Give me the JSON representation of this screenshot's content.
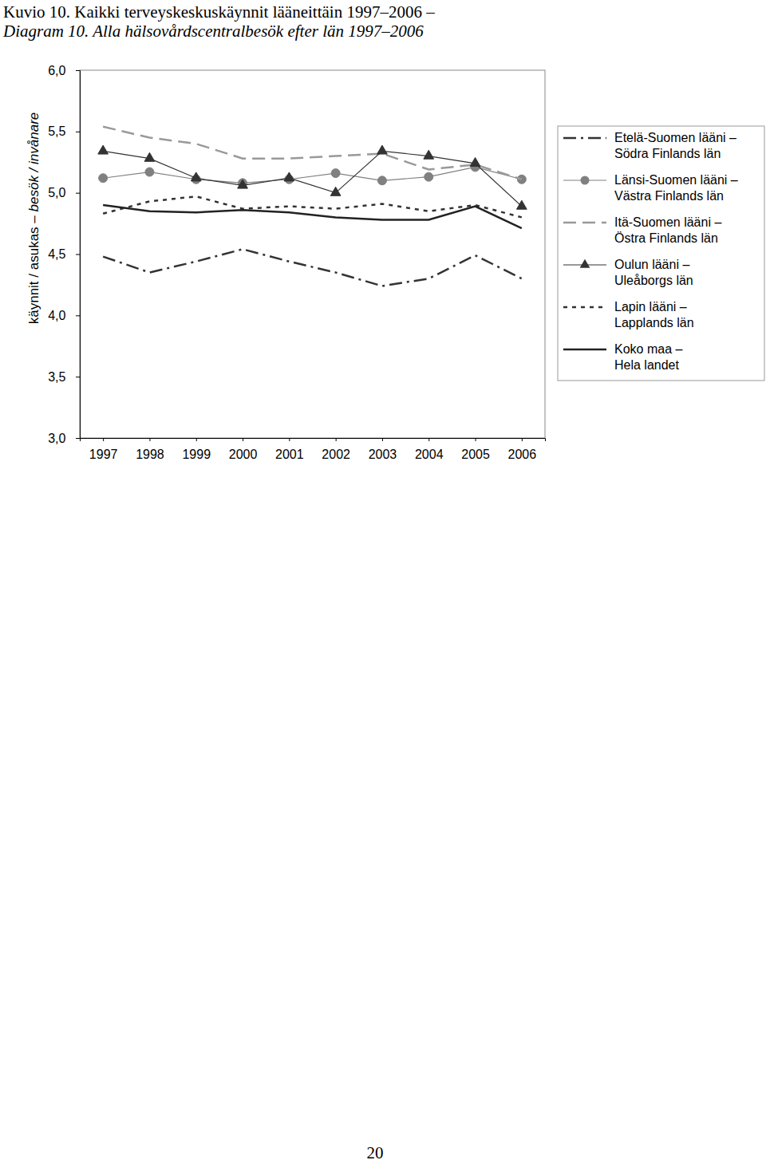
{
  "chart_data": {
    "type": "line",
    "title": "Kuvio 10. Kaikki terveyskeskuskäynnit lääneittäin 1997–2006 –",
    "subtitle": "Diagram 10. Alla hälsovårdscentralbesök efter län 1997–2006",
    "y_label": "käynnit / asukas – besök / invånare",
    "categories": [
      "1997",
      "1998",
      "1999",
      "2000",
      "2001",
      "2002",
      "2003",
      "2004",
      "2005",
      "2006"
    ],
    "series": [
      {
        "name": "Etelä-Suomen lääni – Södra Finlands län",
        "color": "#333333",
        "line_style": "dash-dot",
        "marker": "none",
        "values": [
          4.48,
          4.35,
          4.44,
          4.54,
          4.44,
          4.35,
          4.24,
          4.3,
          4.49,
          4.3
        ]
      },
      {
        "name": "Länsi-Suomen lääni – Västra Finlands län",
        "color": "#808080",
        "line_style": "solid",
        "marker": "circle",
        "values": [
          5.12,
          5.17,
          5.11,
          5.08,
          5.11,
          5.16,
          5.1,
          5.13,
          5.21,
          5.11
        ]
      },
      {
        "name": "Itä-Suomen lääni – Östra Finlands län",
        "color": "#999999",
        "line_style": "dashed",
        "marker": "none",
        "values": [
          5.54,
          5.45,
          5.4,
          5.28,
          5.28,
          5.3,
          5.32,
          5.19,
          5.23,
          5.11
        ]
      },
      {
        "name": "Oulun lääni – Uleåborgs län",
        "color": "#333333",
        "line_style": "solid",
        "marker": "triangle",
        "values": [
          5.34,
          5.28,
          5.12,
          5.06,
          5.12,
          5.0,
          5.34,
          5.3,
          5.24,
          4.89
        ]
      },
      {
        "name": "Lapin lääni – Lapplands län",
        "color": "#333333",
        "line_style": "dotted",
        "marker": "none",
        "values": [
          4.83,
          4.93,
          4.97,
          4.87,
          4.89,
          4.87,
          4.91,
          4.85,
          4.9,
          4.8
        ]
      },
      {
        "name": "Koko maa – Hela landet",
        "color": "#222222",
        "line_style": "solid",
        "marker": "none",
        "values": [
          4.9,
          4.85,
          4.84,
          4.86,
          4.84,
          4.8,
          4.78,
          4.78,
          4.89,
          4.71
        ]
      }
    ],
    "ylim": [
      3,
      6
    ],
    "yticks": [
      {
        "value": 3,
        "label": "3,0"
      },
      {
        "value": 3.5,
        "label": "3,5"
      },
      {
        "value": 4,
        "label": "4,0"
      },
      {
        "value": 4.5,
        "label": "4,5"
      },
      {
        "value": 5,
        "label": "5,0"
      },
      {
        "value": 5.5,
        "label": "5,5"
      },
      {
        "value": 6,
        "label": "6,0"
      }
    ],
    "grid": false,
    "legend": "right"
  },
  "page_number": "20"
}
